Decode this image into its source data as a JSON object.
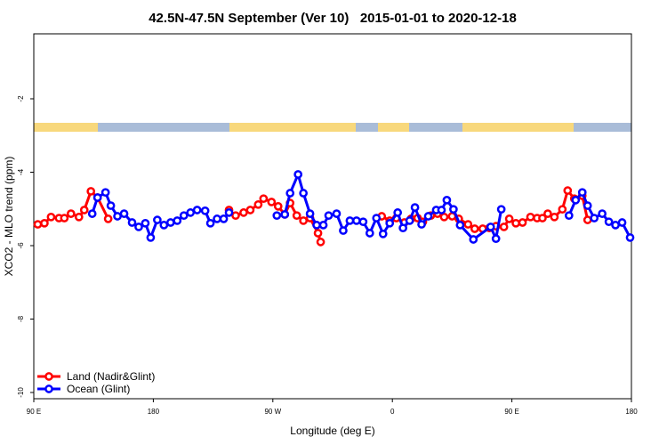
{
  "chart_data": {
    "type": "line",
    "title": "42.5N-47.5N September (Ver 10)   2015-01-01 to 2020-12-18",
    "x_label": "Longitude (deg E)",
    "y_label": "XCO2 - MLO trend (ppm)",
    "xlim": [
      90,
      540
    ],
    "ylim": [
      -10.17,
      -0.23
    ],
    "xticks": [
      {
        "value": 90,
        "label": "90 E"
      },
      {
        "value": 180,
        "label": "180"
      },
      {
        "value": 270,
        "label": "90 W"
      },
      {
        "value": 360,
        "label": "0"
      },
      {
        "value": 450,
        "label": "90 E"
      },
      {
        "value": 540,
        "label": "180"
      }
    ],
    "yticks": [
      -10,
      -8,
      -6,
      -4,
      -2
    ],
    "legend": "bottom-left",
    "series": [
      {
        "name": "Land (Nadir&Glint)",
        "color": "#ff0000",
        "x": [
          93,
          98,
          103,
          109,
          113,
          118,
          124,
          128,
          133,
          138,
          146,
          null,
          237,
          242,
          248,
          253,
          259,
          263,
          269,
          274,
          279,
          283,
          288,
          293,
          298,
          304,
          306,
          null,
          352,
          358,
          363,
          369,
          374,
          379,
          383,
          389,
          394,
          399,
          405,
          410,
          417,
          422,
          428,
          433,
          438,
          444,
          448,
          453,
          458,
          464,
          469,
          473,
          477,
          482,
          488,
          492,
          497,
          503,
          507
        ],
        "values": [
          -5.42,
          -5.39,
          -5.22,
          -5.25,
          -5.25,
          -5.13,
          -5.22,
          -5.03,
          -4.52,
          -4.69,
          -5.27,
          null,
          -5.03,
          -5.18,
          -5.1,
          -5.03,
          -4.88,
          -4.72,
          -4.81,
          -4.93,
          -5.15,
          -4.84,
          -5.18,
          -5.32,
          -5.25,
          -5.66,
          -5.9,
          null,
          -5.2,
          -5.32,
          -5.25,
          -5.37,
          -5.27,
          -5.25,
          -5.35,
          -5.18,
          -5.13,
          -5.22,
          -5.2,
          -5.27,
          -5.42,
          -5.54,
          -5.54,
          -5.52,
          -5.47,
          -5.49,
          -5.27,
          -5.39,
          -5.37,
          -5.22,
          -5.25,
          -5.25,
          -5.13,
          -5.22,
          -5.01,
          -4.5,
          -4.72,
          -4.64,
          -5.3
        ]
      },
      {
        "name": "Ocean (Glint)",
        "color": "#0000ff",
        "x": [
          134,
          138,
          144,
          148,
          153,
          158,
          164,
          169,
          174,
          178,
          183,
          188,
          193,
          198,
          203,
          208,
          213,
          219,
          223,
          228,
          233,
          237,
          null,
          273,
          279,
          283,
          289,
          293,
          298,
          303,
          308,
          312,
          318,
          323,
          328,
          333,
          338,
          343,
          348,
          353,
          358,
          364,
          368,
          373,
          377,
          382,
          387,
          393,
          397,
          401,
          406,
          411,
          421,
          434,
          438,
          442,
          null,
          493,
          498,
          503,
          507,
          512,
          518,
          523,
          528,
          533,
          539
        ],
        "values": [
          -5.13,
          -4.69,
          -4.55,
          -4.91,
          -5.2,
          -5.13,
          -5.37,
          -5.49,
          -5.39,
          -5.78,
          -5.3,
          -5.44,
          -5.37,
          -5.32,
          -5.18,
          -5.1,
          -5.03,
          -5.05,
          -5.39,
          -5.27,
          -5.27,
          -5.1,
          null,
          -5.18,
          -5.15,
          -4.57,
          -4.06,
          -4.57,
          -5.13,
          -5.44,
          -5.44,
          -5.18,
          -5.13,
          -5.59,
          -5.32,
          -5.32,
          -5.35,
          -5.66,
          -5.25,
          -5.68,
          -5.39,
          -5.1,
          -5.52,
          -5.32,
          -4.96,
          -5.42,
          -5.2,
          -5.03,
          -5.03,
          -4.76,
          -5.01,
          -5.44,
          -5.83,
          -5.49,
          -5.81,
          -5.01,
          null,
          -5.18,
          -4.76,
          -4.55,
          -4.91,
          -5.25,
          -5.13,
          -5.35,
          -5.44,
          -5.37,
          -5.78
        ]
      }
    ]
  }
}
